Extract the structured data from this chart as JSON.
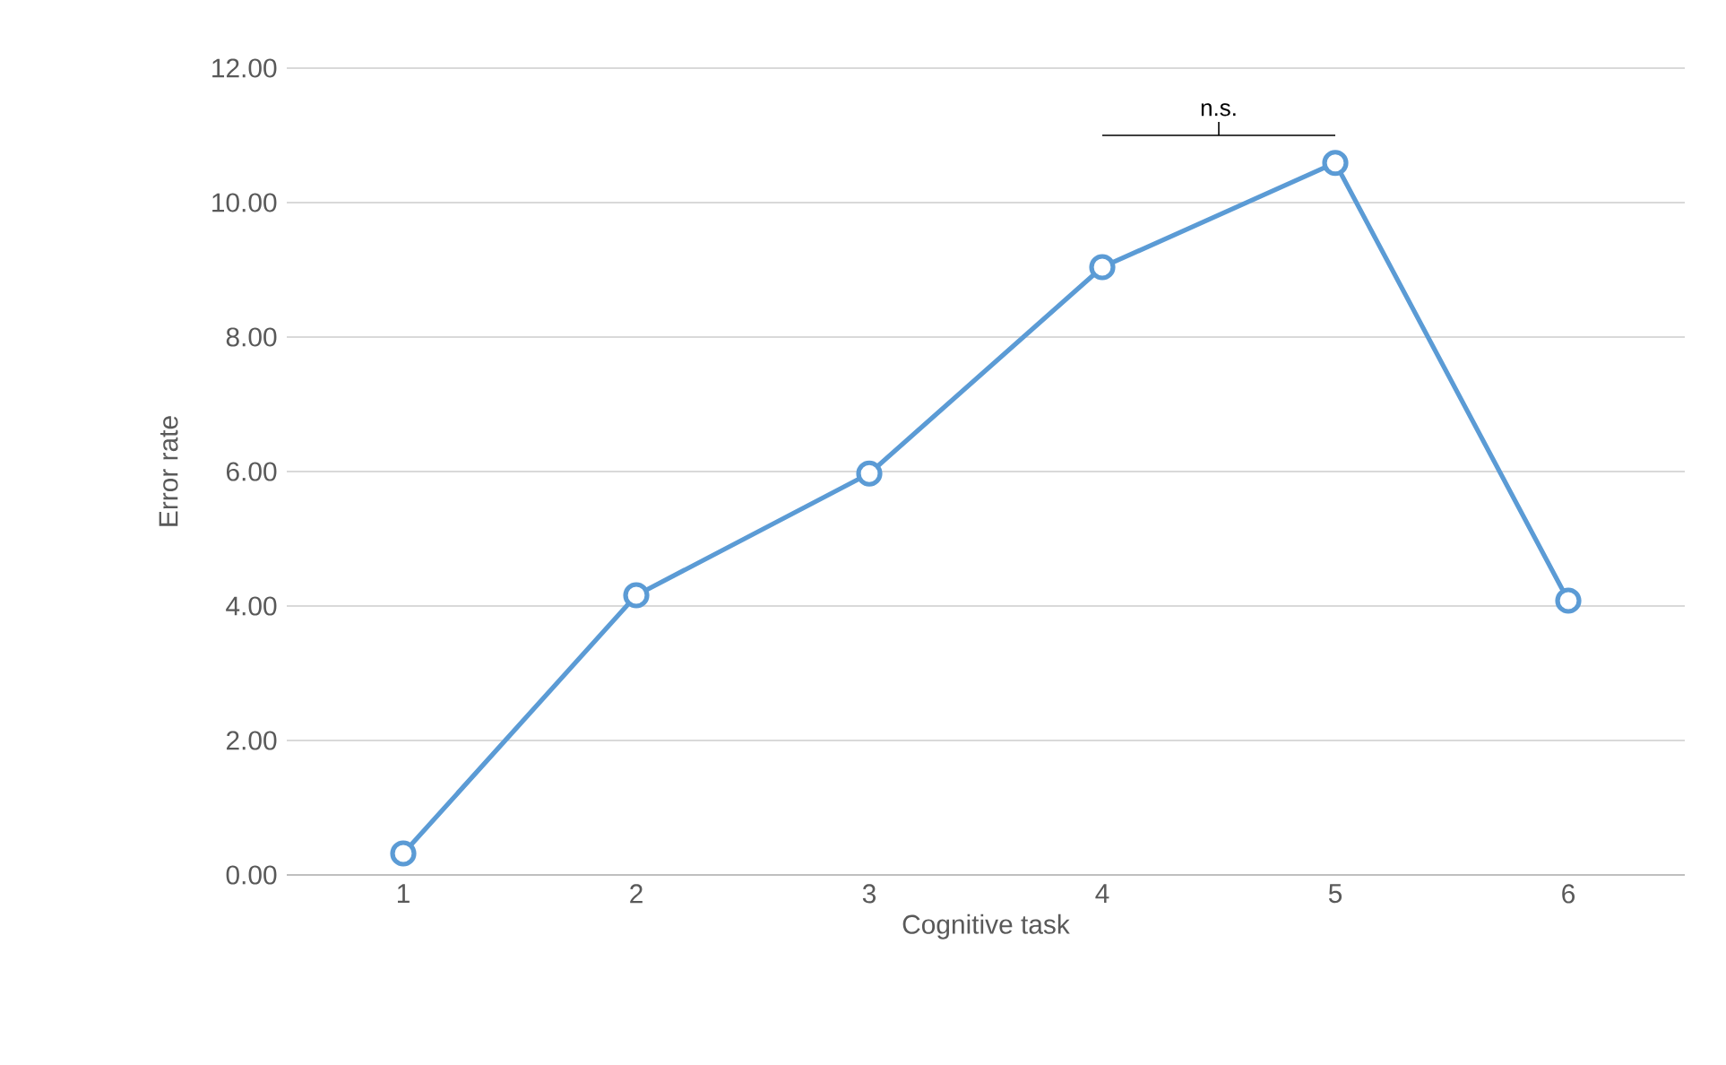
{
  "chart_data": {
    "type": "line",
    "xlabel": "Cognitive task",
    "ylabel": "Error rate",
    "categories": [
      "1",
      "2",
      "3",
      "4",
      "5",
      "6"
    ],
    "series": [
      {
        "color": "#5b9bd5",
        "values": [
          0.32,
          4.16,
          5.97,
          9.04,
          10.59,
          4.08
        ]
      }
    ],
    "ylim": [
      0,
      12
    ],
    "yticks": [
      {
        "value": 0,
        "label": "0.00"
      },
      {
        "value": 2,
        "label": "2.00"
      },
      {
        "value": 4,
        "label": "4.00"
      },
      {
        "value": 6,
        "label": "6.00"
      },
      {
        "value": 8,
        "label": "8.00"
      },
      {
        "value": 10,
        "label": "10.00"
      },
      {
        "value": 12,
        "label": "12.00"
      }
    ],
    "grid": "y",
    "marker": "circle",
    "line_style": "solid",
    "annotations": [
      "n.s."
    ]
  }
}
